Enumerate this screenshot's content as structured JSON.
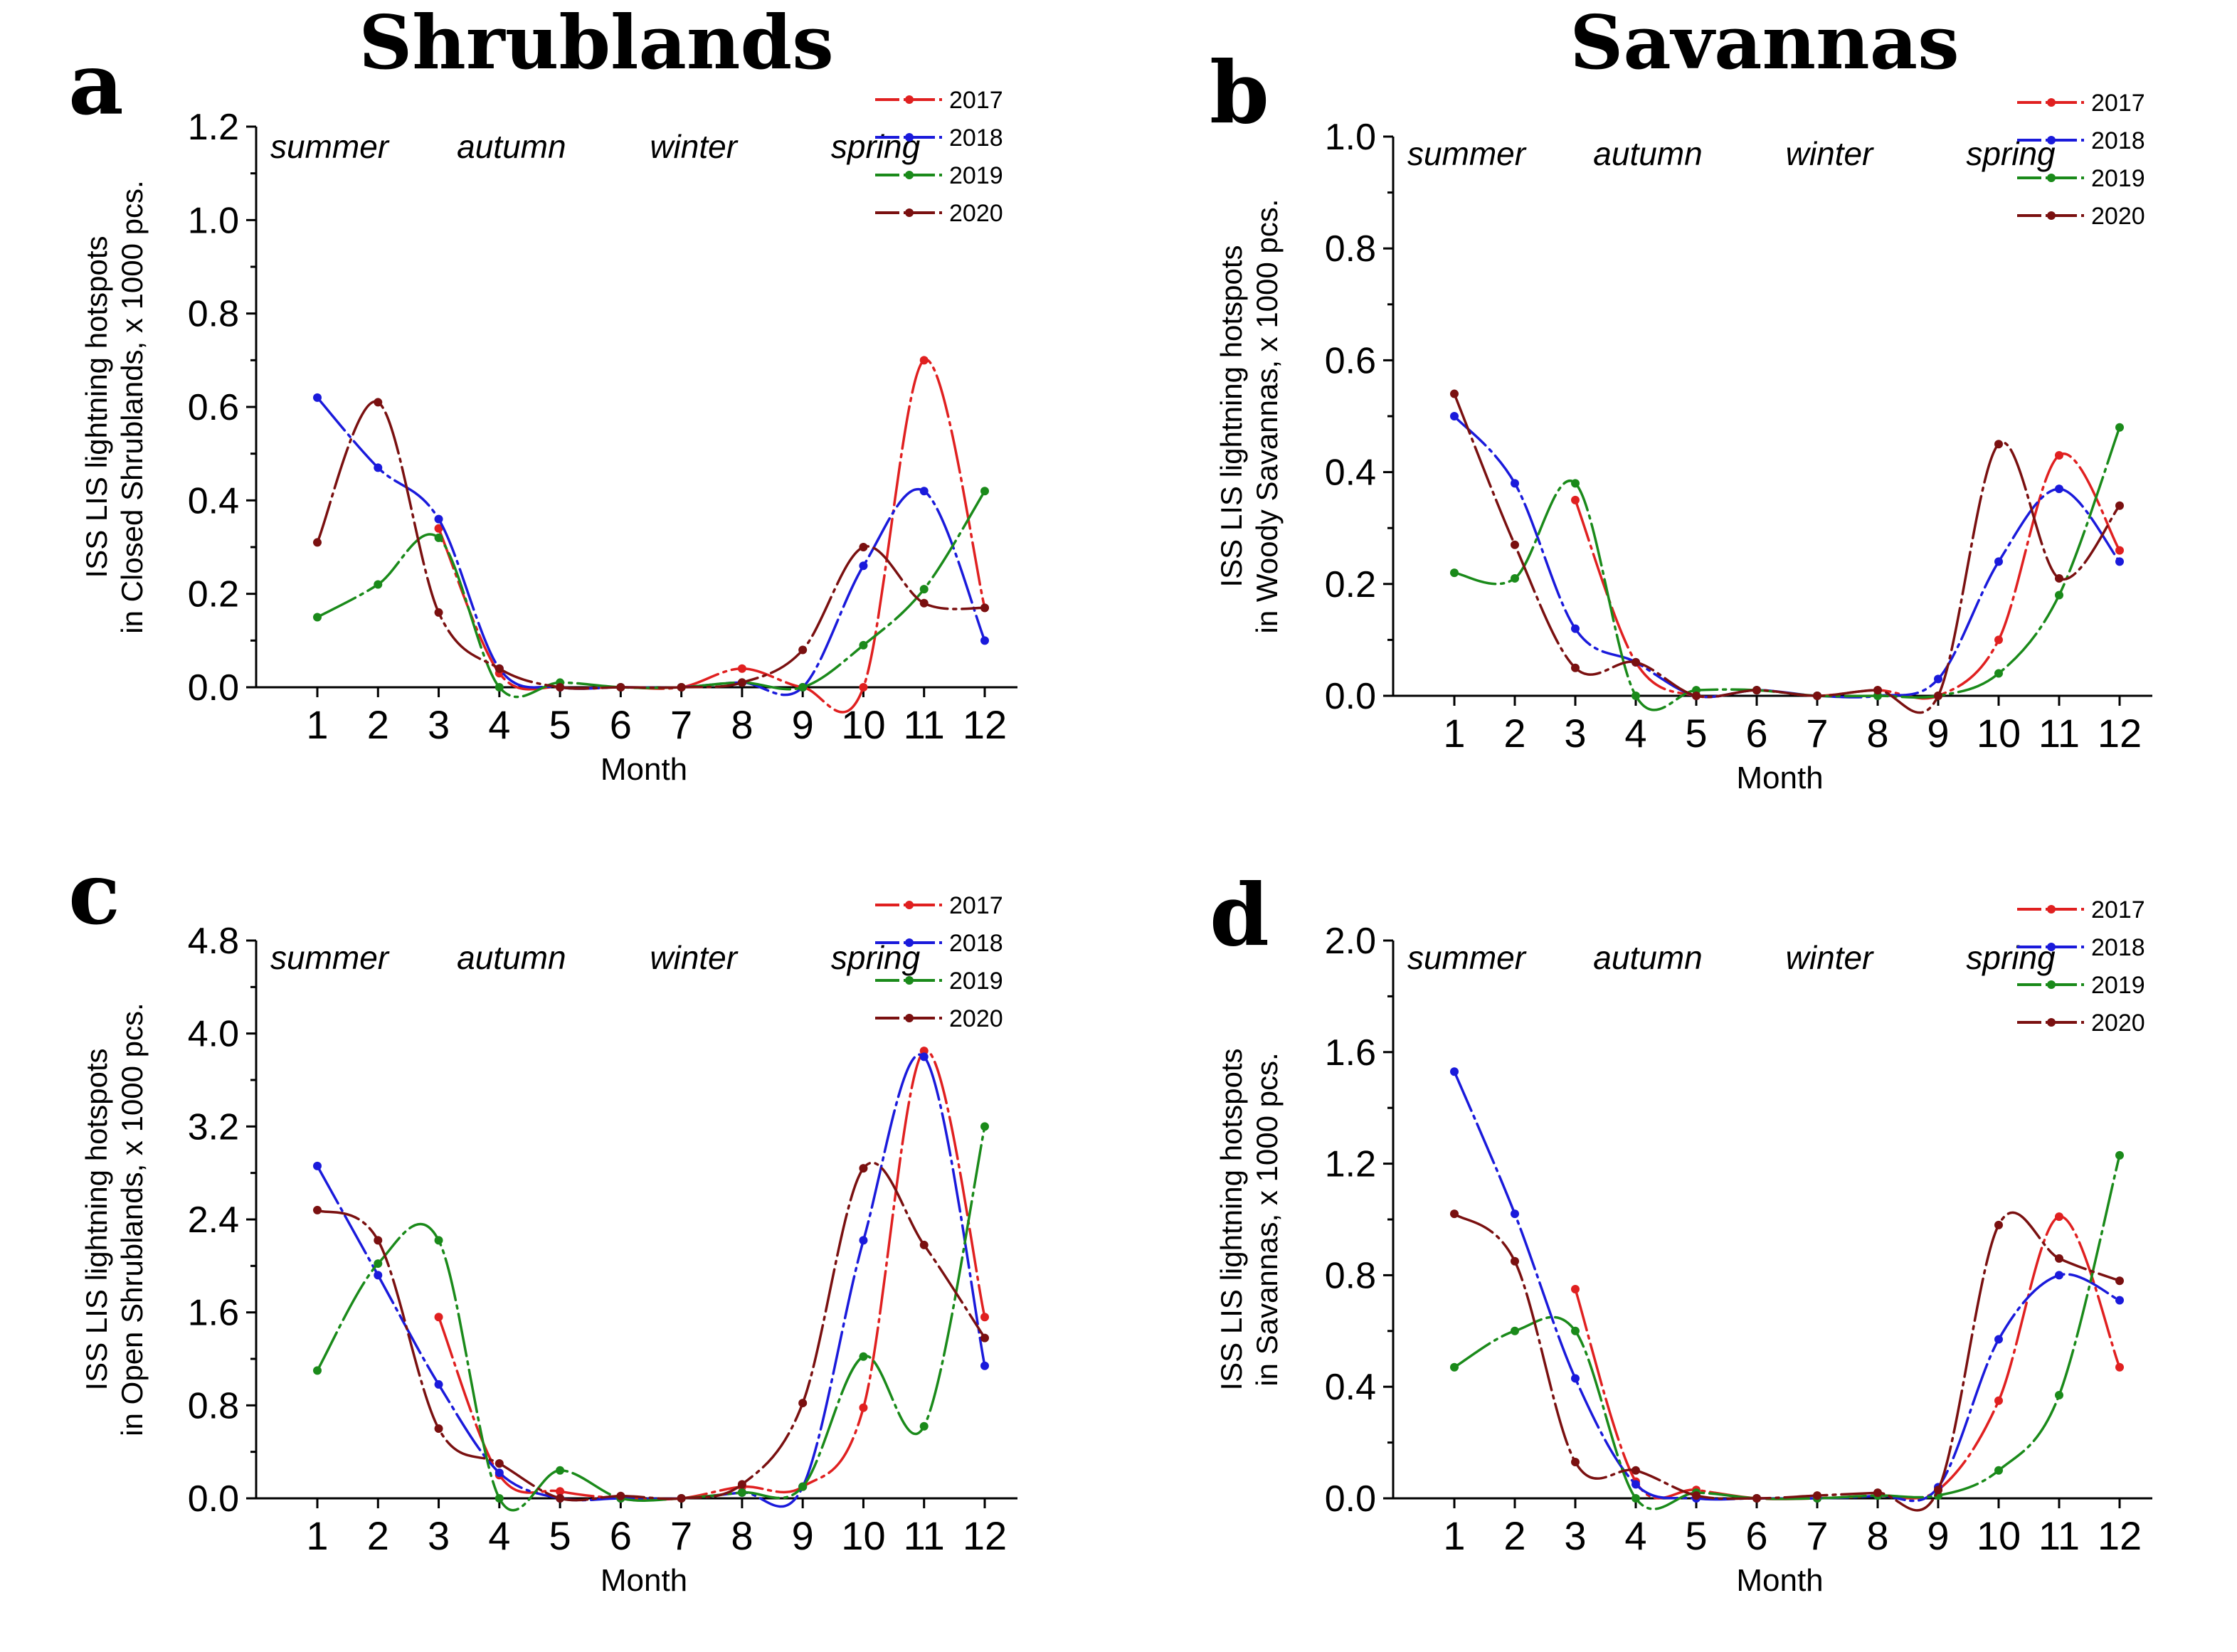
{
  "headings": {
    "left": "Shrublands",
    "right": "Savannas"
  },
  "colors": {
    "2017": "#e02020",
    "2018": "#1a1adb",
    "2019": "#1a8a1a",
    "2020": "#7a1010",
    "axis": "#000000"
  },
  "chart_data": [
    {
      "panel": "a",
      "type": "line",
      "title": "",
      "xlabel": "Month",
      "ylabel_line1": "ISS LIS lightning hotspots",
      "ylabel_line2": "in Closed Shrublands, x 1000 pcs.",
      "categories": [
        "1",
        "2",
        "3",
        "4",
        "5",
        "6",
        "7",
        "8",
        "9",
        "10",
        "11",
        "12"
      ],
      "x": [
        1,
        2,
        3,
        4,
        5,
        6,
        7,
        8,
        9,
        10,
        11,
        12
      ],
      "ylim": [
        0,
        1.2
      ],
      "yticks": [
        "0.0",
        "0.2",
        "0.4",
        "0.6",
        "0.8",
        "1.0",
        "1.2"
      ],
      "seasons": [
        "summer",
        "autumn",
        "winter",
        "spring"
      ],
      "legend_position": "top-right",
      "series": [
        {
          "name": "2017",
          "values": [
            null,
            null,
            0.34,
            0.03,
            0.0,
            0.0,
            0.0,
            0.04,
            0.0,
            0.0,
            0.7,
            0.17
          ]
        },
        {
          "name": "2018",
          "values": [
            0.62,
            0.47,
            0.36,
            0.04,
            0.0,
            0.0,
            0.0,
            0.01,
            0.0,
            0.26,
            0.42,
            0.1
          ]
        },
        {
          "name": "2019",
          "values": [
            0.15,
            0.22,
            0.32,
            0.0,
            0.01,
            0.0,
            0.0,
            0.01,
            0.0,
            0.09,
            0.21,
            0.42
          ]
        },
        {
          "name": "2020",
          "values": [
            0.31,
            0.61,
            0.16,
            0.04,
            0.0,
            0.0,
            0.0,
            0.01,
            0.08,
            0.3,
            0.18,
            0.17
          ]
        }
      ]
    },
    {
      "panel": "b",
      "type": "line",
      "title": "",
      "xlabel": "Month",
      "ylabel_line1": "ISS LIS lightning hotspots",
      "ylabel_line2": "in Woody Savannas, x 1000 pcs.",
      "categories": [
        "1",
        "2",
        "3",
        "4",
        "5",
        "6",
        "7",
        "8",
        "9",
        "10",
        "11",
        "12"
      ],
      "x": [
        1,
        2,
        3,
        4,
        5,
        6,
        7,
        8,
        9,
        10,
        11,
        12
      ],
      "ylim": [
        0,
        1.0
      ],
      "yticks": [
        "0.0",
        "0.2",
        "0.4",
        "0.6",
        "0.8",
        "1.0"
      ],
      "seasons": [
        "summer",
        "autumn",
        "winter",
        "spring"
      ],
      "legend_position": "top-right",
      "series": [
        {
          "name": "2017",
          "values": [
            null,
            null,
            0.35,
            0.06,
            0.0,
            0.01,
            0.0,
            0.01,
            0.0,
            0.1,
            0.43,
            0.26
          ]
        },
        {
          "name": "2018",
          "values": [
            0.5,
            0.38,
            0.12,
            0.06,
            0.0,
            0.01,
            0.0,
            0.0,
            0.03,
            0.24,
            0.37,
            0.24
          ]
        },
        {
          "name": "2019",
          "values": [
            0.22,
            0.21,
            0.38,
            0.0,
            0.01,
            0.01,
            0.0,
            0.0,
            0.0,
            0.04,
            0.18,
            0.48
          ]
        },
        {
          "name": "2020",
          "values": [
            0.54,
            0.27,
            0.05,
            0.06,
            0.0,
            0.01,
            0.0,
            0.01,
            0.0,
            0.45,
            0.21,
            0.34
          ]
        }
      ]
    },
    {
      "panel": "c",
      "type": "line",
      "title": "",
      "xlabel": "Month",
      "ylabel_line1": "ISS LIS lightning hotspots",
      "ylabel_line2": "in Open Shrublands, x 1000 pcs.",
      "categories": [
        "1",
        "2",
        "3",
        "4",
        "5",
        "6",
        "7",
        "8",
        "9",
        "10",
        "11",
        "12"
      ],
      "x": [
        1,
        2,
        3,
        4,
        5,
        6,
        7,
        8,
        9,
        10,
        11,
        12
      ],
      "ylim": [
        0,
        4.8
      ],
      "yticks": [
        "0.0",
        "0.8",
        "1.6",
        "2.4",
        "3.2",
        "4.0",
        "4.8"
      ],
      "seasons": [
        "summer",
        "autumn",
        "winter",
        "spring"
      ],
      "legend_position": "top-right",
      "series": [
        {
          "name": "2017",
          "values": [
            null,
            null,
            1.56,
            0.2,
            0.06,
            0.0,
            0.0,
            0.1,
            0.1,
            0.78,
            3.85,
            1.56
          ]
        },
        {
          "name": "2018",
          "values": [
            2.86,
            1.92,
            0.98,
            0.22,
            0.0,
            0.0,
            0.0,
            0.05,
            0.1,
            2.22,
            3.8,
            1.14
          ]
        },
        {
          "name": "2019",
          "values": [
            1.1,
            2.02,
            2.22,
            0.0,
            0.24,
            0.0,
            0.0,
            0.05,
            0.1,
            1.22,
            0.62,
            3.2
          ]
        },
        {
          "name": "2020",
          "values": [
            2.48,
            2.22,
            0.6,
            0.3,
            0.0,
            0.02,
            0.0,
            0.12,
            0.82,
            2.84,
            2.18,
            1.38
          ]
        }
      ]
    },
    {
      "panel": "d",
      "type": "line",
      "title": "",
      "xlabel": "Month",
      "ylabel_line1": "ISS LIS lightning hotspots",
      "ylabel_line2": "in Savannas, x 1000 pcs.",
      "categories": [
        "1",
        "2",
        "3",
        "4",
        "5",
        "6",
        "7",
        "8",
        "9",
        "10",
        "11",
        "12"
      ],
      "x": [
        1,
        2,
        3,
        4,
        5,
        6,
        7,
        8,
        9,
        10,
        11,
        12
      ],
      "ylim": [
        0,
        2.0
      ],
      "yticks": [
        "0.0",
        "0.4",
        "0.8",
        "1.2",
        "1.6",
        "2.0"
      ],
      "seasons": [
        "summer",
        "autumn",
        "winter",
        "spring"
      ],
      "legend_position": "top-right",
      "series": [
        {
          "name": "2017",
          "values": [
            null,
            null,
            0.75,
            0.06,
            0.03,
            0.0,
            0.0,
            0.01,
            0.03,
            0.35,
            1.01,
            0.47
          ]
        },
        {
          "name": "2018",
          "values": [
            1.53,
            1.02,
            0.43,
            0.05,
            0.0,
            0.0,
            0.0,
            0.01,
            0.04,
            0.57,
            0.8,
            0.71
          ]
        },
        {
          "name": "2019",
          "values": [
            0.47,
            0.6,
            0.6,
            0.0,
            0.02,
            0.0,
            0.0,
            0.01,
            0.01,
            0.1,
            0.37,
            1.23
          ]
        },
        {
          "name": "2020",
          "values": [
            1.02,
            0.85,
            0.13,
            0.1,
            0.01,
            0.0,
            0.01,
            0.02,
            0.03,
            0.98,
            0.86,
            0.78
          ]
        }
      ]
    }
  ]
}
